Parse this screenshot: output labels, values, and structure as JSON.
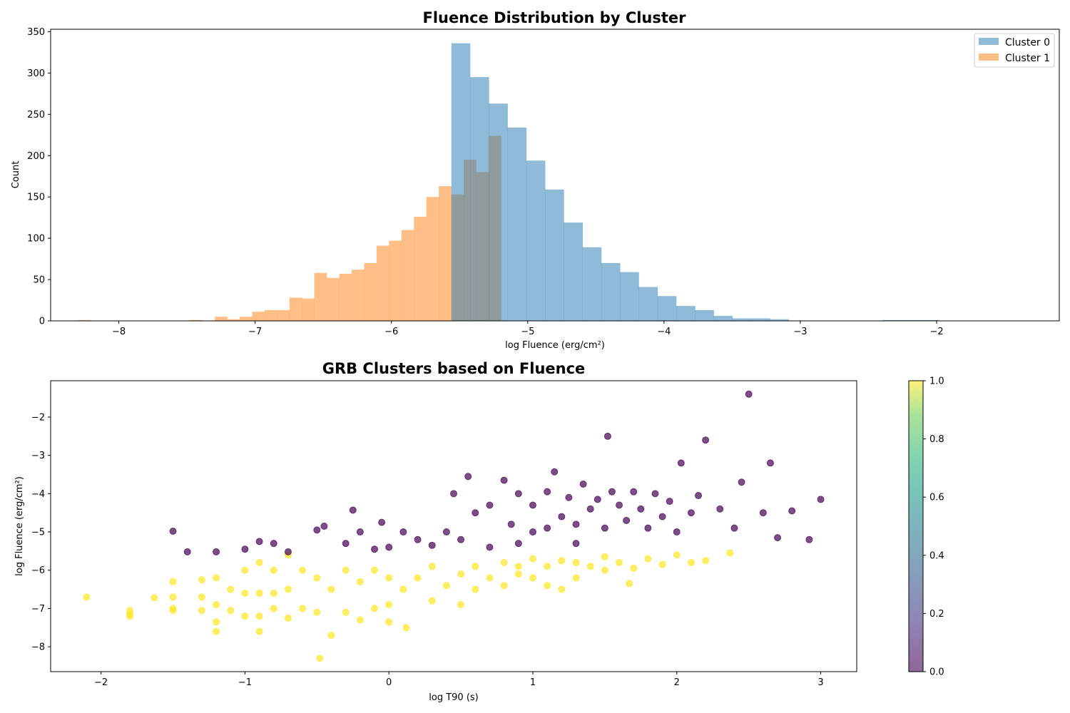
{
  "chart_data": [
    {
      "type": "bar",
      "subtype": "histogram",
      "title": "Fluence Distribution by Cluster",
      "xlabel": "log Fluence (erg/cm²)",
      "ylabel": "Count",
      "xlim": [
        -8.5,
        -1.1
      ],
      "ylim": [
        0,
        353
      ],
      "xticks": [
        -8,
        -7,
        -6,
        -5,
        -4,
        -3,
        -2
      ],
      "yticks": [
        0,
        50,
        100,
        150,
        200,
        250,
        300,
        350
      ],
      "legend": "top-right",
      "grid": false,
      "series": [
        {
          "name": "Cluster 0",
          "color": "#1f77b4",
          "alpha": 0.5,
          "bin_start": -5.56,
          "bin_width": 0.1375,
          "counts": [
            336,
            295,
            263,
            234,
            194,
            159,
            119,
            89,
            70,
            59,
            41,
            30,
            18,
            13,
            6,
            3,
            3,
            2,
            0,
            0,
            0,
            0,
            0,
            1,
            1,
            1,
            0,
            0,
            0,
            0,
            0,
            0,
            0,
            0,
            0,
            0,
            0,
            0,
            0,
            0,
            0,
            0,
            1
          ]
        },
        {
          "name": "Cluster 1",
          "color": "#ff7f0e",
          "alpha": 0.5,
          "bin_start": -8.3,
          "bin_width": 0.0913,
          "counts": [
            1,
            0,
            0,
            0,
            0,
            0,
            0,
            0,
            0,
            1,
            0,
            5,
            2,
            5,
            11,
            13,
            13,
            28,
            27,
            58,
            52,
            57,
            62,
            70,
            91,
            97,
            110,
            126,
            150,
            163,
            153,
            195,
            180,
            224
          ]
        }
      ]
    },
    {
      "type": "scatter",
      "title": "GRB Clusters based on Fluence",
      "xlabel": "log T90 (s)",
      "ylabel": "log Fluence (erg/cm²)",
      "xlim": [
        -2.35,
        3.25
      ],
      "ylim": [
        -8.65,
        -1.05
      ],
      "xticks": [
        -2,
        -1,
        0,
        1,
        2,
        3
      ],
      "yticks": [
        -8,
        -7,
        -6,
        -5,
        -4,
        -3,
        -2
      ],
      "grid": false,
      "colorbar": {
        "colormap": "viridis",
        "range": [
          0.0,
          1.0
        ],
        "ticks": [
          0.0,
          0.2,
          0.4,
          0.6,
          0.8,
          1.0
        ]
      },
      "series": [
        {
          "name": "1",
          "color": "#fde725",
          "alpha": 0.7,
          "x": [
            -2.1,
            -1.8,
            -1.8,
            -1.8,
            -1.63,
            -1.5,
            -1.5,
            -1.5,
            -1.5,
            -1.3,
            -1.3,
            -1.3,
            -1.2,
            -1.2,
            -1.2,
            -1.2,
            -1.1,
            -1.1,
            -1.0,
            -1.0,
            -1.0,
            -0.9,
            -0.9,
            -0.9,
            -0.9,
            -0.8,
            -0.8,
            -0.8,
            -0.7,
            -0.7,
            -0.7,
            -0.6,
            -0.6,
            -0.5,
            -0.5,
            -0.48,
            -0.4,
            -0.4,
            -0.3,
            -0.3,
            -0.2,
            -0.2,
            -0.1,
            -0.1,
            0.0,
            0.0,
            0.0,
            0.1,
            0.12,
            0.2,
            0.3,
            0.3,
            0.4,
            0.5,
            0.5,
            0.6,
            0.6,
            0.7,
            0.8,
            0.8,
            0.9,
            0.9,
            1.0,
            1.0,
            1.1,
            1.1,
            1.2,
            1.2,
            1.3,
            1.3,
            1.4,
            1.5,
            1.5,
            1.6,
            1.67,
            1.7,
            1.8,
            1.9,
            2.0,
            2.1,
            2.2,
            2.37
          ],
          "y": [
            -6.7,
            -7.05,
            -7.15,
            -7.2,
            -6.72,
            -6.3,
            -6.7,
            -7.0,
            -7.05,
            -6.25,
            -6.7,
            -7.05,
            -6.2,
            -6.9,
            -7.35,
            -7.6,
            -6.5,
            -7.05,
            -6.0,
            -6.6,
            -7.2,
            -5.8,
            -6.6,
            -7.2,
            -7.6,
            -6.0,
            -6.6,
            -7.0,
            -5.6,
            -6.5,
            -7.25,
            -6.0,
            -7.0,
            -6.2,
            -7.1,
            -8.3,
            -6.5,
            -7.7,
            -6.0,
            -7.1,
            -6.3,
            -7.3,
            -6.0,
            -7.0,
            -6.2,
            -6.9,
            -7.35,
            -6.5,
            -7.5,
            -6.2,
            -5.9,
            -6.8,
            -6.4,
            -6.1,
            -6.9,
            -5.9,
            -6.5,
            -6.2,
            -5.8,
            -6.4,
            -5.9,
            -6.1,
            -5.7,
            -6.2,
            -5.9,
            -6.4,
            -5.75,
            -6.5,
            -5.8,
            -6.2,
            -5.9,
            -5.65,
            -6.0,
            -5.8,
            -6.35,
            -5.95,
            -5.7,
            -5.85,
            -5.6,
            -5.8,
            -5.75,
            -5.55
          ]
        },
        {
          "name": "0",
          "color": "#440154",
          "alpha": 0.7,
          "x": [
            -1.5,
            -1.4,
            -1.2,
            -1.0,
            -0.9,
            -0.8,
            -0.7,
            -0.5,
            -0.45,
            -0.3,
            -0.25,
            -0.2,
            -0.1,
            -0.05,
            0.0,
            0.1,
            0.2,
            0.3,
            0.4,
            0.45,
            0.5,
            0.55,
            0.6,
            0.7,
            0.7,
            0.8,
            0.85,
            0.9,
            0.9,
            1.0,
            1.0,
            1.1,
            1.1,
            1.15,
            1.2,
            1.25,
            1.3,
            1.3,
            1.35,
            1.4,
            1.45,
            1.5,
            1.52,
            1.55,
            1.6,
            1.65,
            1.7,
            1.75,
            1.8,
            1.85,
            1.9,
            1.95,
            2.0,
            2.03,
            2.1,
            2.15,
            2.2,
            2.3,
            2.4,
            2.45,
            2.5,
            2.6,
            2.65,
            2.7,
            2.8,
            2.92,
            3.0
          ],
          "y": [
            -4.98,
            -5.52,
            -5.52,
            -5.45,
            -5.25,
            -5.3,
            -5.52,
            -4.95,
            -4.85,
            -5.3,
            -4.43,
            -5.0,
            -5.45,
            -4.75,
            -5.4,
            -5.0,
            -5.2,
            -5.35,
            -5.0,
            -4.0,
            -5.2,
            -3.55,
            -4.5,
            -4.3,
            -5.4,
            -3.65,
            -4.8,
            -4.0,
            -5.3,
            -4.3,
            -5.0,
            -3.95,
            -4.9,
            -3.43,
            -4.6,
            -4.1,
            -4.8,
            -5.3,
            -3.75,
            -4.4,
            -4.15,
            -4.9,
            -2.5,
            -3.95,
            -4.3,
            -4.7,
            -3.95,
            -4.4,
            -4.9,
            -4.0,
            -4.6,
            -4.2,
            -5.0,
            -3.2,
            -4.5,
            -4.05,
            -2.6,
            -4.4,
            -4.9,
            -3.7,
            -1.4,
            -4.5,
            -3.2,
            -5.15,
            -4.45,
            -5.2,
            -4.15
          ]
        }
      ]
    }
  ]
}
